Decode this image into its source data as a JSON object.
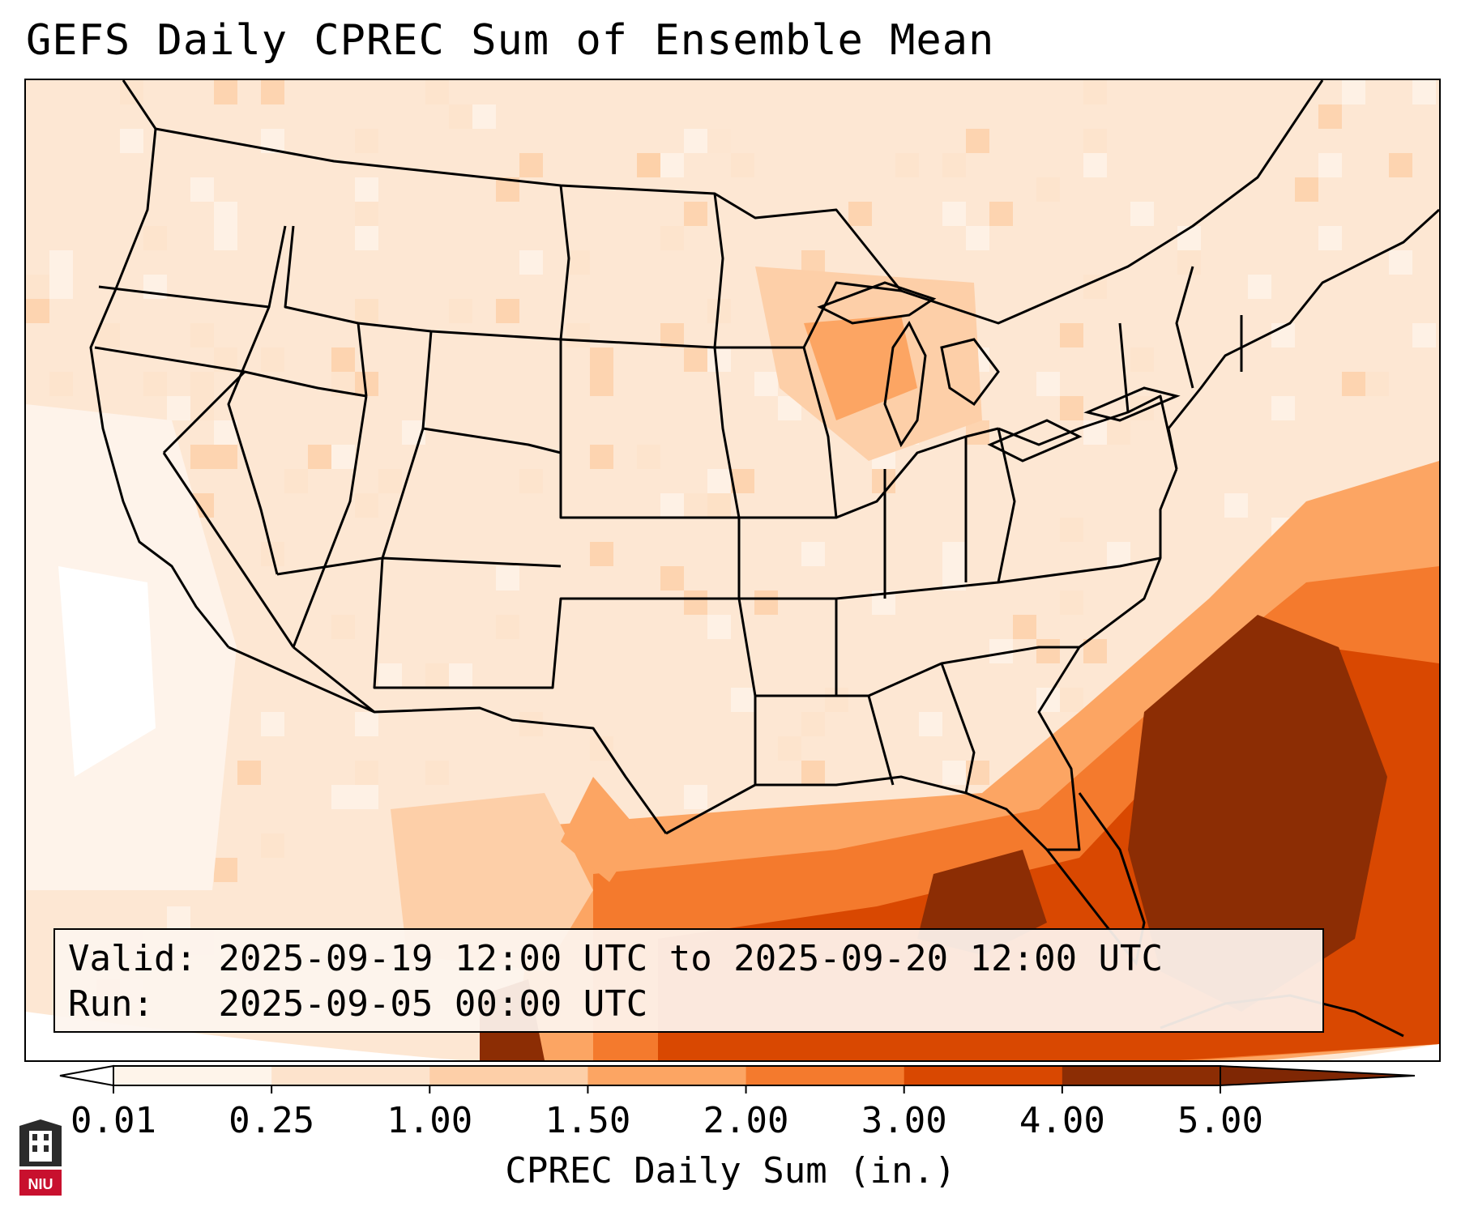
{
  "title": "GEFS Daily CPREC Sum of Ensemble Mean",
  "info": {
    "valid_label": "Valid:",
    "valid_value": "2025-09-19 12:00 UTC to 2025-09-20 12:00 UTC",
    "run_label": "Run:",
    "run_value": "2025-09-05 00:00 UTC"
  },
  "colorbar": {
    "label": "CPREC Daily Sum (in.)",
    "ticks": [
      "0.01",
      "0.25",
      "1.00",
      "1.50",
      "2.00",
      "3.00",
      "4.00",
      "5.00"
    ],
    "colors": [
      "#fef4ea",
      "#fde3cc",
      "#fdcfa8",
      "#fca563",
      "#f47a2d",
      "#d94801",
      "#8c2d04"
    ],
    "under_color": "#ffffff",
    "over_color": "#7f2704"
  },
  "logo": {
    "text": "NIU",
    "color": "#c8102e"
  },
  "map": {
    "region": "Contiguous United States, southern Canada, northern Mexico, Gulf of Mexico",
    "heavy_precip_areas": [
      "Atlantic off Southeast coast",
      "Gulf of Mexico",
      "Florida"
    ]
  }
}
